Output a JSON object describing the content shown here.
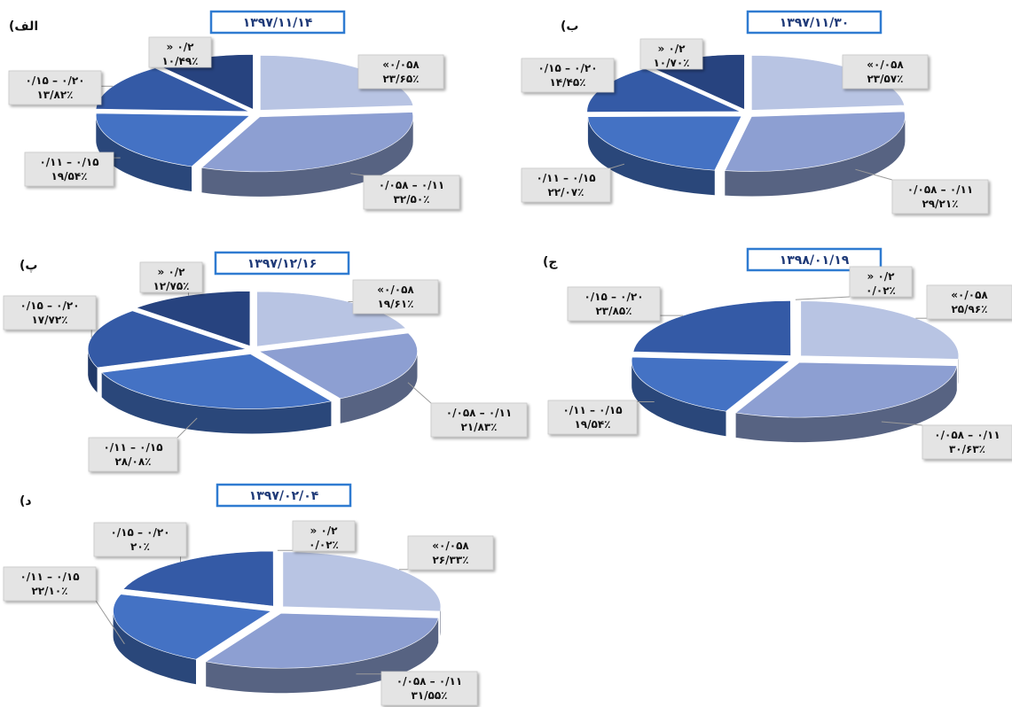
{
  "chart_data": [
    {
      "type": "pie",
      "panel_label": "(الف",
      "date": "۱۳۹۷/۱۱/۱۴",
      "slices": [
        {
          "range": "«۰/۰۵۸",
          "value": 23.65,
          "percent_label": "۲۳/۶۵٪",
          "color": "#b8c4e3"
        },
        {
          "range": "۰/۰۵۸ – ۰/۱۱",
          "value": 32.5,
          "percent_label": "۳۲/۵۰٪",
          "color": "#8d9fd2"
        },
        {
          "range": "۰/۱۱ – ۰/۱۵",
          "value": 19.54,
          "percent_label": "۱۹/۵۴٪",
          "color": "#4472c4"
        },
        {
          "range": "۰/۱۵ – ۰/۲۰",
          "value": 13.82,
          "percent_label": "۱۳/۸۲٪",
          "color": "#345aa6"
        },
        {
          "range": "» ۰/۲",
          "value": 10.49,
          "percent_label": "۱۰/۴۹٪",
          "color": "#27437f"
        }
      ]
    },
    {
      "type": "pie",
      "panel_label": "(ب",
      "date": "۱۳۹۷/۱۱/۳۰",
      "slices": [
        {
          "range": "«۰/۰۵۸",
          "value": 23.57,
          "percent_label": "۲۳/۵۷٪",
          "color": "#b8c4e3"
        },
        {
          "range": "۰/۰۵۸ – ۰/۱۱",
          "value": 29.21,
          "percent_label": "۲۹/۲۱٪",
          "color": "#8d9fd2"
        },
        {
          "range": "۰/۱۱ – ۰/۱۵",
          "value": 22.07,
          "percent_label": "۲۲/۰۷٪",
          "color": "#4472c4"
        },
        {
          "range": "۰/۱۵ – ۰/۲۰",
          "value": 14.45,
          "percent_label": "۱۴/۴۵٪",
          "color": "#345aa6"
        },
        {
          "range": "» ۰/۲",
          "value": 10.7,
          "percent_label": "۱۰/۷۰٪",
          "color": "#27437f"
        }
      ]
    },
    {
      "type": "pie",
      "panel_label": "(پ",
      "date": "۱۳۹۷/۱۲/۱۶",
      "slices": [
        {
          "range": "«۰/۰۵۸",
          "value": 19.61,
          "percent_label": "۱۹/۶۱٪",
          "color": "#b8c4e3"
        },
        {
          "range": "۰/۰۵۸ – ۰/۱۱",
          "value": 21.83,
          "percent_label": "۲۱/۸۳٪",
          "color": "#8d9fd2"
        },
        {
          "range": "۰/۱۱ – ۰/۱۵",
          "value": 28.08,
          "percent_label": "۲۸/۰۸٪",
          "color": "#4472c4"
        },
        {
          "range": "۰/۱۵ – ۰/۲۰",
          "value": 17.72,
          "percent_label": "۱۷/۷۲٪",
          "color": "#345aa6"
        },
        {
          "range": "» ۰/۲",
          "value": 12.75,
          "percent_label": "۱۲/۷۵٪",
          "color": "#27437f"
        }
      ]
    },
    {
      "type": "pie",
      "panel_label": "(ج",
      "date": "۱۳۹۸/۰۱/۱۹",
      "slices": [
        {
          "range": "«۰/۰۵۸",
          "value": 25.96,
          "percent_label": "۲۵/۹۶٪",
          "color": "#b8c4e3"
        },
        {
          "range": "۰/۰۵۸ – ۰/۱۱",
          "value": 30.63,
          "percent_label": "۳۰/۶۳٪",
          "color": "#8d9fd2"
        },
        {
          "range": "۰/۱۱ – ۰/۱۵",
          "value": 19.54,
          "percent_label": "۱۹/۵۴٪",
          "color": "#4472c4"
        },
        {
          "range": "۰/۱۵ – ۰/۲۰",
          "value": 23.85,
          "percent_label": "۲۳/۸۵٪",
          "color": "#345aa6"
        },
        {
          "range": "» ۰/۲",
          "value": 0.02,
          "percent_label": "۰/۰۲٪",
          "color": "#27437f"
        }
      ]
    },
    {
      "type": "pie",
      "panel_label": "(د",
      "date": "۱۳۹۷/۰۲/۰۴",
      "slices": [
        {
          "range": "«۰/۰۵۸",
          "value": 26.33,
          "percent_label": "۲۶/۳۳٪",
          "color": "#b8c4e3"
        },
        {
          "range": "۰/۰۵۸ – ۰/۱۱",
          "value": 31.55,
          "percent_label": "۳۱/۵۵٪",
          "color": "#8d9fd2"
        },
        {
          "range": "۰/۱۱ – ۰/۱۵",
          "value": 22.1,
          "percent_label": "۲۲/۱۰٪",
          "color": "#4472c4"
        },
        {
          "range": "۰/۱۵ – ۰/۲۰",
          "value": 20,
          "percent_label": "۲۰٪",
          "color": "#345aa6"
        },
        {
          "range": "» ۰/۲",
          "value": 0.02,
          "percent_label": "۰/۰۲٪",
          "color": "#27437f"
        }
      ]
    }
  ]
}
